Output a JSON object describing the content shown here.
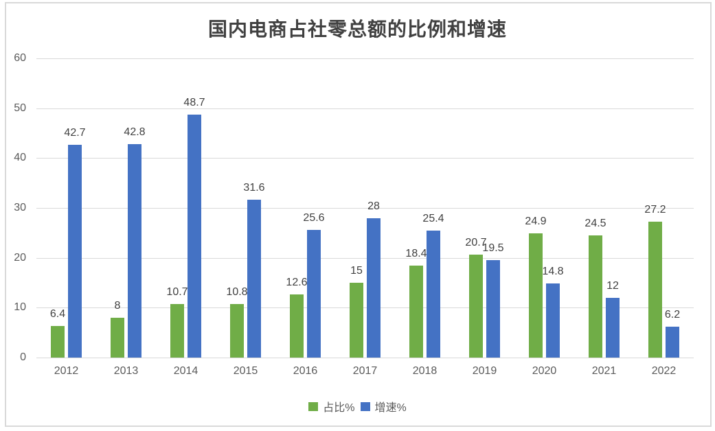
{
  "title": "国内电商占社零总额的比例和增速",
  "colors": {
    "series_proportion": "#70AD47",
    "series_growth": "#4472C4",
    "gridline": "#D9D9D9",
    "frame_border": "#D9D9D9",
    "axis_text": "#595959",
    "data_label_text": "#404040",
    "title_text": "#404040",
    "background": "#FFFFFF"
  },
  "legend": {
    "items": [
      {
        "label": "占比%",
        "color": "#70AD47"
      },
      {
        "label": "增速%",
        "color": "#4472C4"
      }
    ],
    "position": "bottom"
  },
  "chart_data": {
    "type": "bar",
    "title": "国内电商占社零总额的比例和增速",
    "categories": [
      "2012",
      "2013",
      "2014",
      "2015",
      "2016",
      "2017",
      "2018",
      "2019",
      "2020",
      "2021",
      "2022"
    ],
    "series": [
      {
        "name": "占比%",
        "color": "#70AD47",
        "values": [
          6.4,
          8,
          10.7,
          10.8,
          12.6,
          15,
          18.4,
          20.7,
          24.9,
          24.5,
          27.2
        ]
      },
      {
        "name": "增速%",
        "color": "#4472C4",
        "values": [
          42.7,
          42.8,
          48.7,
          31.6,
          25.6,
          28,
          25.4,
          19.5,
          14.8,
          12,
          6.2
        ]
      }
    ],
    "xlabel": "",
    "ylabel": "",
    "ylim": [
      0,
      60
    ],
    "yticks": [
      0,
      10,
      20,
      30,
      40,
      50,
      60
    ],
    "grid": true,
    "data_labels": true,
    "legend_position": "bottom"
  }
}
